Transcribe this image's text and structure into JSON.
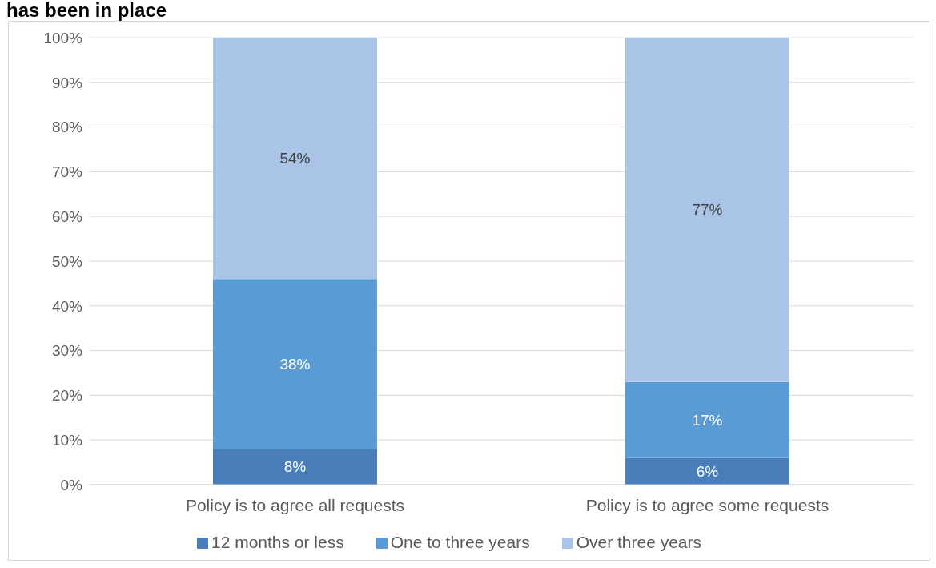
{
  "chart_data": {
    "type": "bar",
    "title": "has been in place",
    "stacked": true,
    "categories": [
      "Policy is to agree all requests",
      "Policy is to agree some requests"
    ],
    "series": [
      {
        "name": "12 months or less",
        "color": "#4a7ebb",
        "values": [
          8,
          6
        ],
        "value_labels": [
          "8%",
          "6%"
        ]
      },
      {
        "name": "One to three years",
        "color": "#5b9bd5",
        "values": [
          38,
          17
        ],
        "value_labels": [
          "38%",
          "17%"
        ]
      },
      {
        "name": "Over three years",
        "color": "#a9c4e6",
        "values": [
          54,
          77
        ],
        "value_labels": [
          "54%",
          "77%"
        ]
      }
    ],
    "ylim": [
      0,
      100
    ],
    "yticks": [
      {
        "value": 0,
        "label": "0%"
      },
      {
        "value": 10,
        "label": "10%"
      },
      {
        "value": 20,
        "label": "20%"
      },
      {
        "value": 30,
        "label": "30%"
      },
      {
        "value": 40,
        "label": "40%"
      },
      {
        "value": 50,
        "label": "50%"
      },
      {
        "value": 60,
        "label": "60%"
      },
      {
        "value": 70,
        "label": "70%"
      },
      {
        "value": 80,
        "label": "80%"
      },
      {
        "value": 90,
        "label": "90%"
      },
      {
        "value": 100,
        "label": "100%"
      }
    ],
    "grid": "y",
    "legend": "bottom"
  }
}
